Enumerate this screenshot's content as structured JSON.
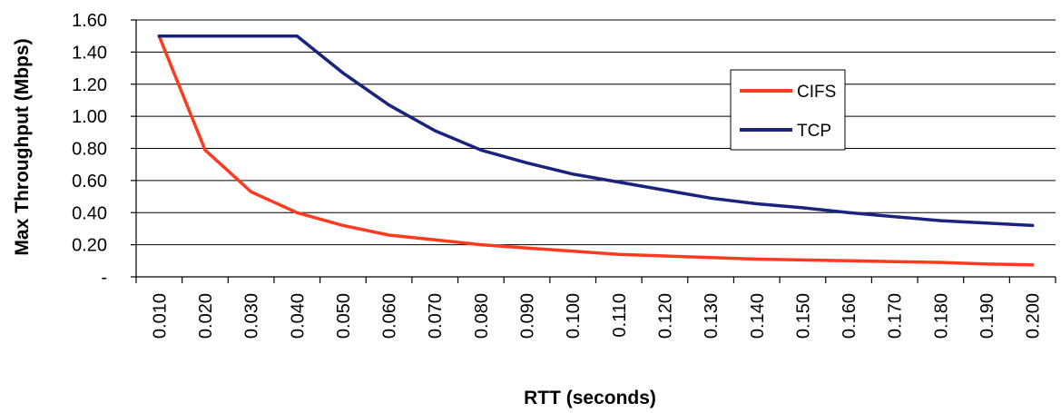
{
  "chart_data": {
    "type": "line",
    "xlabel": "RTT (seconds)",
    "ylabel": "Max Throughput (Mbps)",
    "categories": [
      "0.010",
      "0.020",
      "0.030",
      "0.040",
      "0.050",
      "0.060",
      "0.070",
      "0.080",
      "0.090",
      "0.100",
      "0.110",
      "0.120",
      "0.130",
      "0.140",
      "0.150",
      "0.160",
      "0.170",
      "0.180",
      "0.190",
      "0.200"
    ],
    "y_ticks": [
      "-",
      "0.20",
      "0.40",
      "0.60",
      "0.80",
      "1.00",
      "1.20",
      "1.40",
      "1.60"
    ],
    "ylim": [
      0,
      1.6
    ],
    "grid": true,
    "legend_placement": "top-right",
    "series": [
      {
        "name": "CIFS",
        "color": "#ff3b1f",
        "values": [
          1.5,
          0.79,
          0.53,
          0.4,
          0.32,
          0.26,
          0.23,
          0.2,
          0.18,
          0.16,
          0.14,
          0.13,
          0.12,
          0.11,
          0.105,
          0.1,
          0.095,
          0.09,
          0.08,
          0.075
        ]
      },
      {
        "name": "TCP",
        "color": "#1a237e",
        "values": [
          1.5,
          1.5,
          1.5,
          1.5,
          1.27,
          1.07,
          0.91,
          0.79,
          0.71,
          0.64,
          0.59,
          0.54,
          0.49,
          0.455,
          0.43,
          0.4,
          0.375,
          0.35,
          0.335,
          0.32
        ]
      }
    ]
  }
}
